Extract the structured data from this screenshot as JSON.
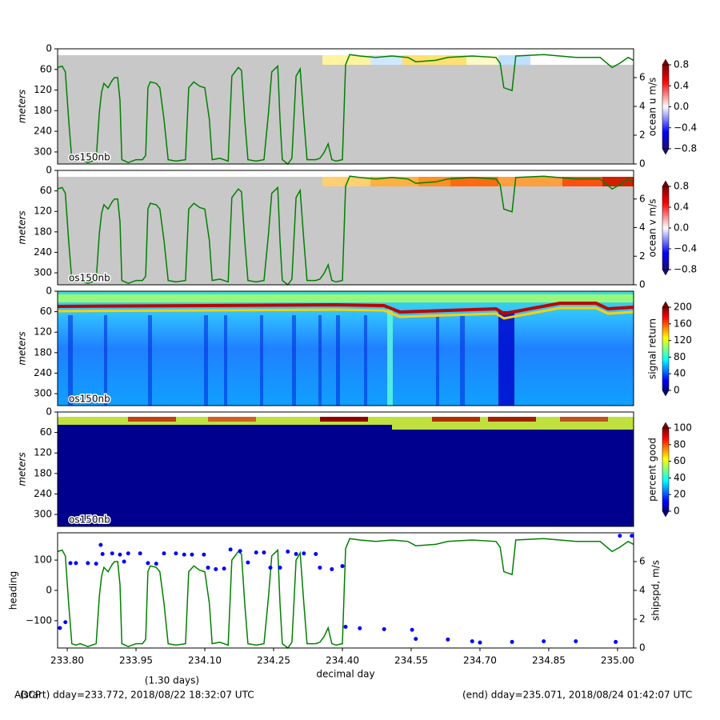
{
  "chart_data": [
    {
      "type": "image",
      "ylabel": "meters",
      "annotation": "os150nb",
      "ylim": [
        335,
        0
      ],
      "yticks": [
        0,
        60,
        120,
        180,
        240,
        300
      ],
      "y2lim": [
        0,
        8
      ],
      "y2ticks": [
        0,
        2,
        4,
        6
      ],
      "colorbar": {
        "label": "ocean u m/s",
        "lim": [
          -0.8,
          0.8
        ],
        "colormap": "diverging",
        "ticks": [
          {
            "value": -0.8,
            "label": "−0.8"
          },
          {
            "value": -0.4,
            "label": "−0.4"
          },
          {
            "value": 0,
            "label": "0.0"
          },
          {
            "value": 0.4,
            "label": "0.4"
          },
          {
            "value": 0.8,
            "label": "0.8"
          }
        ]
      }
    },
    {
      "type": "image",
      "ylabel": "meters",
      "annotation": "os150nb",
      "ylim": [
        335,
        0
      ],
      "yticks": [
        0,
        60,
        120,
        180,
        240,
        300
      ],
      "y2lim": [
        0,
        8
      ],
      "y2ticks": [
        0,
        2,
        4,
        6
      ],
      "colorbar": {
        "label": "ocean v m/s",
        "lim": [
          -0.8,
          0.8
        ],
        "colormap": "diverging",
        "ticks": [
          {
            "value": -0.8,
            "label": "−0.8"
          },
          {
            "value": -0.4,
            "label": "−0.4"
          },
          {
            "value": 0,
            "label": "0.0"
          },
          {
            "value": 0.4,
            "label": "0.4"
          },
          {
            "value": 0.8,
            "label": "0.8"
          }
        ]
      }
    },
    {
      "type": "image",
      "ylabel": "meters",
      "annotation": "os150nb",
      "ylim": [
        335,
        0
      ],
      "yticks": [
        0,
        60,
        120,
        180,
        240,
        300
      ],
      "colorbar": {
        "label": "signal return",
        "lim": [
          0,
          200
        ],
        "colormap": "jet",
        "ticks": [
          0,
          40,
          80,
          120,
          160,
          200
        ]
      }
    },
    {
      "type": "image",
      "ylabel": "meters",
      "annotation": "os150nb",
      "ylim": [
        335,
        0
      ],
      "yticks": [
        0,
        60,
        120,
        180,
        240,
        300
      ],
      "colorbar": {
        "label": "percent good",
        "lim": [
          0,
          100
        ],
        "colormap": "jet",
        "ticks": [
          0,
          20,
          40,
          60,
          80,
          100
        ]
      }
    },
    {
      "type": "scatter_line",
      "ylabel": "heading",
      "y2label": "shipspd, m/s",
      "xlabel": "decimal day",
      "xlim": [
        233.779,
        235.035
      ],
      "xticks": [
        {
          "value": 233.8,
          "label": "233.80"
        },
        {
          "value": 233.95,
          "label": "233.95"
        },
        {
          "value": 234.1,
          "label": "234.10"
        },
        {
          "value": 234.25,
          "label": "234.25"
        },
        {
          "value": 234.4,
          "label": "234.40"
        },
        {
          "value": 234.55,
          "label": "234.55"
        },
        {
          "value": 234.7,
          "label": "234.70"
        },
        {
          "value": 234.85,
          "label": "234.85"
        },
        {
          "value": 235.0,
          "label": "235.00"
        }
      ],
      "ylim": [
        -190,
        190
      ],
      "yticks": [
        {
          "value": -100,
          "label": "−100"
        },
        0,
        100
      ],
      "y2lim": [
        0,
        8
      ],
      "y2ticks": [
        0,
        2,
        4,
        6
      ],
      "series": [
        {
          "name": "heading",
          "color": "#0000ff",
          "x": [
            233.784,
            233.796,
            233.807,
            233.819,
            233.845,
            233.863,
            233.873,
            233.877,
            233.898,
            233.915,
            233.924,
            233.933,
            233.959,
            233.976,
            233.994,
            234.011,
            234.037,
            234.055,
            234.072,
            234.098,
            234.107,
            234.124,
            234.142,
            234.156,
            234.177,
            234.194,
            234.212,
            234.229,
            234.243,
            234.264,
            234.281,
            234.299,
            234.316,
            234.342,
            234.351,
            234.377,
            234.4,
            234.407,
            234.438,
            234.491,
            234.552,
            234.56,
            234.63,
            234.683,
            234.7,
            234.77,
            234.839,
            234.909,
            234.996,
            235.005,
            235.031
          ],
          "values": [
            -124,
            -105,
            90,
            90,
            90,
            88,
            150,
            120,
            122,
            118,
            95,
            122,
            122,
            90,
            88,
            122,
            122,
            118,
            118,
            118,
            75,
            70,
            72,
            135,
            130,
            92,
            125,
            125,
            75,
            75,
            128,
            120,
            122,
            120,
            75,
            70,
            80,
            -120,
            -125,
            -128,
            -130,
            -160,
            -162,
            -168,
            -172,
            -170,
            -168,
            -168,
            -170,
            180,
            180
          ]
        },
        {
          "name": "shipspd",
          "color": "#008000",
          "axis": "y2",
          "x": [
            233.779,
            233.789,
            233.796,
            233.803,
            233.81,
            233.819,
            233.828,
            233.845,
            233.863,
            233.87,
            233.875,
            233.88,
            233.889,
            233.898,
            233.903,
            233.91,
            233.915,
            233.919,
            233.933,
            233.95,
            233.964,
            233.971,
            233.976,
            233.981,
            233.994,
            234.002,
            234.011,
            234.02,
            234.037,
            234.058,
            234.065,
            234.076,
            234.089,
            234.1,
            234.11,
            234.116,
            234.133,
            234.151,
            234.159,
            234.173,
            234.18,
            234.187,
            234.194,
            234.212,
            234.229,
            234.239,
            234.246,
            234.259,
            234.264,
            234.269,
            234.281,
            234.29,
            234.299,
            234.308,
            234.316,
            234.323,
            234.342,
            234.351,
            234.36,
            234.369,
            234.377,
            234.386,
            234.4,
            234.407,
            234.416,
            234.438,
            234.473,
            234.508,
            234.543,
            234.56,
            234.604,
            234.63,
            234.683,
            234.735,
            234.744,
            234.752,
            234.77,
            234.778,
            234.839,
            234.909,
            234.962,
            234.988,
            235.005,
            235.023,
            235.035
          ],
          "values": [
            6.7,
            6.8,
            6.4,
            3.1,
            0.3,
            0.2,
            0.3,
            0.1,
            0.3,
            3.6,
            5.0,
            5.6,
            5.3,
            5.8,
            6.0,
            6.0,
            4.4,
            0.3,
            0.1,
            0.3,
            0.3,
            0.6,
            5.3,
            5.7,
            5.6,
            5.3,
            3.1,
            0.3,
            0.2,
            0.3,
            5.3,
            5.7,
            5.4,
            5.3,
            3.1,
            0.3,
            0.4,
            0.2,
            6.1,
            6.7,
            6.5,
            3.1,
            0.3,
            0.2,
            0.3,
            3.6,
            6.4,
            6.8,
            3.1,
            0.3,
            0.0,
            0.4,
            6.1,
            6.6,
            3.1,
            0.3,
            0.3,
            0.4,
            0.8,
            1.4,
            0.3,
            0.2,
            0.3,
            6.9,
            7.6,
            7.5,
            7.4,
            7.5,
            7.4,
            7.1,
            7.2,
            7.4,
            7.5,
            7.4,
            7.0,
            5.3,
            5.1,
            7.5,
            7.6,
            7.4,
            7.4,
            6.7,
            7.0,
            7.4,
            7.2
          ]
        }
      ]
    }
  ],
  "footer": {
    "duration": "(1.30 days)",
    "program": "ADCP",
    "start": "(start) dday=233.772,  2018/08/22 18:32:07 UTC",
    "end": "(end) dday=235.071,  2018/08/24 01:42:07 UTC"
  }
}
